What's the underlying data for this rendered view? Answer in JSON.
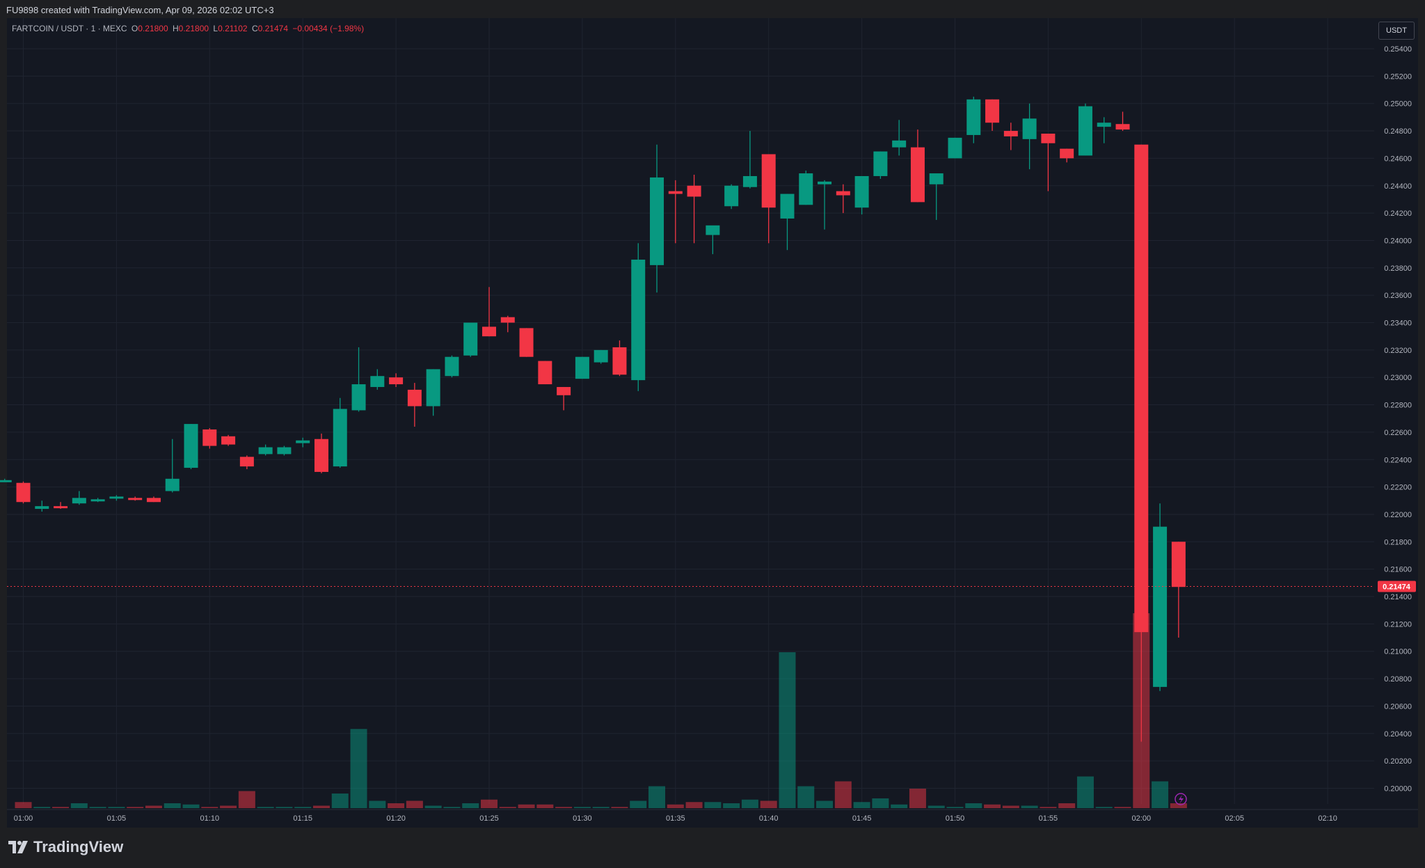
{
  "header": {
    "title": "FU9898 created with TradingView.com, Apr 09, 2026 02:02 UTC+3"
  },
  "legend": {
    "symbol": "FARTCOIN / USDT · 1 · MEXC",
    "open_label": "O",
    "open": "0.21800",
    "high_label": "H",
    "high": "0.21800",
    "low_label": "L",
    "low": "0.21102",
    "close_label": "C",
    "close": "0.21474",
    "change": "−0.00434 (−1.98%)"
  },
  "currency_button": "USDT",
  "footer": {
    "brand": "TradingView"
  },
  "colors": {
    "up": "#089981",
    "down": "#f23645",
    "background": "#141822",
    "grid": "#1f2430"
  },
  "chart_data": {
    "type": "candlestick",
    "ylim": [
      0.1988,
      0.2556
    ],
    "y_ticks": [
      "0.25400",
      "0.25200",
      "0.25000",
      "0.24800",
      "0.24600",
      "0.24400",
      "0.24200",
      "0.24000",
      "0.23800",
      "0.23600",
      "0.23400",
      "0.23200",
      "0.23000",
      "0.22800",
      "0.22600",
      "0.22400",
      "0.22200",
      "0.22000",
      "0.21800",
      "0.21600",
      "0.21400",
      "0.21200",
      "0.21000",
      "0.20800",
      "0.20600",
      "0.20400",
      "0.20200",
      "0.20000"
    ],
    "x_ticks": [
      "01:00",
      "01:05",
      "01:10",
      "01:15",
      "01:20",
      "01:25",
      "01:30",
      "01:35",
      "01:40",
      "01:45",
      "01:50",
      "01:55",
      "02:00",
      "02:05",
      "02:10"
    ],
    "last_price": "0.21474",
    "candles": [
      {
        "t": "00:59",
        "o": 0.2225,
        "h": 0.2226,
        "l": 0.2224,
        "c": 0.2225,
        "v": 0
      },
      {
        "t": "01:00",
        "o": 0.2223,
        "h": 0.2224,
        "l": 0.2208,
        "c": 0.2209,
        "v": 5
      },
      {
        "t": "01:01",
        "o": 0.2204,
        "h": 0.221,
        "l": 0.2202,
        "c": 0.2206,
        "v": 1
      },
      {
        "t": "01:02",
        "o": 0.2206,
        "h": 0.2209,
        "l": 0.2204,
        "c": 0.2205,
        "v": 1
      },
      {
        "t": "01:03",
        "o": 0.2208,
        "h": 0.2217,
        "l": 0.2207,
        "c": 0.2212,
        "v": 4
      },
      {
        "t": "01:04",
        "o": 0.221,
        "h": 0.2212,
        "l": 0.2209,
        "c": 0.2211,
        "v": 1
      },
      {
        "t": "01:05",
        "o": 0.2212,
        "h": 0.2214,
        "l": 0.221,
        "c": 0.2213,
        "v": 1
      },
      {
        "t": "01:06",
        "o": 0.2212,
        "h": 0.2213,
        "l": 0.221,
        "c": 0.2211,
        "v": 1
      },
      {
        "t": "01:07",
        "o": 0.2212,
        "h": 0.2213,
        "l": 0.2209,
        "c": 0.2209,
        "v": 2
      },
      {
        "t": "01:08",
        "o": 0.2217,
        "h": 0.2255,
        "l": 0.2216,
        "c": 0.2226,
        "v": 4
      },
      {
        "t": "01:09",
        "o": 0.2234,
        "h": 0.2266,
        "l": 0.2233,
        "c": 0.2266,
        "v": 3
      },
      {
        "t": "01:10",
        "o": 0.2262,
        "h": 0.2263,
        "l": 0.2248,
        "c": 0.225,
        "v": 1
      },
      {
        "t": "01:11",
        "o": 0.2257,
        "h": 0.2258,
        "l": 0.225,
        "c": 0.2251,
        "v": 2
      },
      {
        "t": "01:12",
        "o": 0.2242,
        "h": 0.2243,
        "l": 0.2233,
        "c": 0.2235,
        "v": 14
      },
      {
        "t": "01:13",
        "o": 0.2244,
        "h": 0.2251,
        "l": 0.2243,
        "c": 0.2249,
        "v": 1
      },
      {
        "t": "01:14",
        "o": 0.2244,
        "h": 0.225,
        "l": 0.2243,
        "c": 0.2249,
        "v": 1
      },
      {
        "t": "01:15",
        "o": 0.2252,
        "h": 0.2256,
        "l": 0.2249,
        "c": 0.2254,
        "v": 1
      },
      {
        "t": "01:16",
        "o": 0.2255,
        "h": 0.2259,
        "l": 0.223,
        "c": 0.2231,
        "v": 2
      },
      {
        "t": "01:17",
        "o": 0.2235,
        "h": 0.2285,
        "l": 0.2234,
        "c": 0.2277,
        "v": 12
      },
      {
        "t": "01:18",
        "o": 0.2276,
        "h": 0.2322,
        "l": 0.2275,
        "c": 0.2295,
        "v": 65
      },
      {
        "t": "01:19",
        "o": 0.2293,
        "h": 0.2306,
        "l": 0.2291,
        "c": 0.2301,
        "v": 6
      },
      {
        "t": "01:20",
        "o": 0.23,
        "h": 0.2303,
        "l": 0.2293,
        "c": 0.2295,
        "v": 4
      },
      {
        "t": "01:21",
        "o": 0.2291,
        "h": 0.2296,
        "l": 0.2264,
        "c": 0.2279,
        "v": 6
      },
      {
        "t": "01:22",
        "o": 0.2279,
        "h": 0.2306,
        "l": 0.2272,
        "c": 0.2306,
        "v": 2
      },
      {
        "t": "01:23",
        "o": 0.2301,
        "h": 0.2316,
        "l": 0.23,
        "c": 0.2315,
        "v": 1
      },
      {
        "t": "01:24",
        "o": 0.2316,
        "h": 0.234,
        "l": 0.2315,
        "c": 0.234,
        "v": 4
      },
      {
        "t": "01:25",
        "o": 0.2337,
        "h": 0.2366,
        "l": 0.233,
        "c": 0.233,
        "v": 7
      },
      {
        "t": "01:26",
        "o": 0.2344,
        "h": 0.2345,
        "l": 0.2333,
        "c": 0.234,
        "v": 1
      },
      {
        "t": "01:27",
        "o": 0.2336,
        "h": 0.2336,
        "l": 0.2315,
        "c": 0.2315,
        "v": 3
      },
      {
        "t": "01:28",
        "o": 0.2312,
        "h": 0.2312,
        "l": 0.2295,
        "c": 0.2295,
        "v": 3
      },
      {
        "t": "01:29",
        "o": 0.2293,
        "h": 0.2293,
        "l": 0.2276,
        "c": 0.2287,
        "v": 1
      },
      {
        "t": "01:30",
        "o": 0.2299,
        "h": 0.2315,
        "l": 0.2299,
        "c": 0.2315,
        "v": 1
      },
      {
        "t": "01:31",
        "o": 0.2311,
        "h": 0.232,
        "l": 0.231,
        "c": 0.232,
        "v": 1
      },
      {
        "t": "01:32",
        "o": 0.2322,
        "h": 0.2327,
        "l": 0.2301,
        "c": 0.2302,
        "v": 1
      },
      {
        "t": "01:33",
        "o": 0.2298,
        "h": 0.2398,
        "l": 0.229,
        "c": 0.2386,
        "v": 6
      },
      {
        "t": "01:34",
        "o": 0.2382,
        "h": 0.247,
        "l": 0.2362,
        "c": 0.2446,
        "v": 18
      },
      {
        "t": "01:35",
        "o": 0.2436,
        "h": 0.2444,
        "l": 0.2398,
        "c": 0.2434,
        "v": 3
      },
      {
        "t": "01:36",
        "o": 0.244,
        "h": 0.2448,
        "l": 0.2398,
        "c": 0.2432,
        "v": 5
      },
      {
        "t": "01:37",
        "o": 0.2404,
        "h": 0.241,
        "l": 0.239,
        "c": 0.2411,
        "v": 5
      },
      {
        "t": "01:38",
        "o": 0.2425,
        "h": 0.2441,
        "l": 0.2423,
        "c": 0.244,
        "v": 4
      },
      {
        "t": "01:39",
        "o": 0.2439,
        "h": 0.248,
        "l": 0.2438,
        "c": 0.2447,
        "v": 7
      },
      {
        "t": "01:40",
        "o": 0.2463,
        "h": 0.2463,
        "l": 0.2398,
        "c": 0.2424,
        "v": 6
      },
      {
        "t": "01:41",
        "o": 0.2416,
        "h": 0.2434,
        "l": 0.2393,
        "c": 0.2434,
        "v": 128
      },
      {
        "t": "01:42",
        "o": 0.2426,
        "h": 0.2451,
        "l": 0.2426,
        "c": 0.2449,
        "v": 18
      },
      {
        "t": "01:43",
        "o": 0.2441,
        "h": 0.2444,
        "l": 0.2408,
        "c": 0.2443,
        "v": 6
      },
      {
        "t": "01:44",
        "o": 0.2436,
        "h": 0.2441,
        "l": 0.242,
        "c": 0.2433,
        "v": 22
      },
      {
        "t": "01:45",
        "o": 0.2424,
        "h": 0.2447,
        "l": 0.2419,
        "c": 0.2447,
        "v": 5
      },
      {
        "t": "01:46",
        "o": 0.2447,
        "h": 0.2465,
        "l": 0.2445,
        "c": 0.2465,
        "v": 8
      },
      {
        "t": "01:47",
        "o": 0.2468,
        "h": 0.2488,
        "l": 0.2462,
        "c": 0.2473,
        "v": 3
      },
      {
        "t": "01:48",
        "o": 0.2468,
        "h": 0.2481,
        "l": 0.2428,
        "c": 0.2428,
        "v": 16
      },
      {
        "t": "01:49",
        "o": 0.2441,
        "h": 0.2447,
        "l": 0.2415,
        "c": 0.2449,
        "v": 2
      },
      {
        "t": "01:50",
        "o": 0.246,
        "h": 0.2475,
        "l": 0.246,
        "c": 0.2475,
        "v": 1
      },
      {
        "t": "01:51",
        "o": 0.2477,
        "h": 0.2505,
        "l": 0.2471,
        "c": 0.2503,
        "v": 4
      },
      {
        "t": "01:52",
        "o": 0.2503,
        "h": 0.2503,
        "l": 0.248,
        "c": 0.2486,
        "v": 3
      },
      {
        "t": "01:53",
        "o": 0.248,
        "h": 0.2486,
        "l": 0.2466,
        "c": 0.2476,
        "v": 2
      },
      {
        "t": "01:54",
        "o": 0.2474,
        "h": 0.25,
        "l": 0.2452,
        "c": 0.2489,
        "v": 2
      },
      {
        "t": "01:55",
        "o": 0.2478,
        "h": 0.2478,
        "l": 0.2436,
        "c": 0.2471,
        "v": 1
      },
      {
        "t": "01:56",
        "o": 0.2467,
        "h": 0.2467,
        "l": 0.2457,
        "c": 0.246,
        "v": 4
      },
      {
        "t": "01:57",
        "o": 0.2462,
        "h": 0.25,
        "l": 0.2462,
        "c": 0.2498,
        "v": 26
      },
      {
        "t": "01:58",
        "o": 0.2483,
        "h": 0.249,
        "l": 0.2471,
        "c": 0.2486,
        "v": 1
      },
      {
        "t": "01:59",
        "o": 0.2485,
        "h": 0.2494,
        "l": 0.248,
        "c": 0.2481,
        "v": 1
      },
      {
        "t": "02:00",
        "o": 0.247,
        "h": 0.247,
        "l": 0.2034,
        "c": 0.2114,
        "v": 160
      },
      {
        "t": "02:01",
        "o": 0.2074,
        "h": 0.2208,
        "l": 0.2071,
        "c": 0.2191,
        "v": 22
      },
      {
        "t": "02:02",
        "o": 0.218,
        "h": 0.218,
        "l": 0.211,
        "c": 0.2147,
        "v": 4
      }
    ]
  }
}
